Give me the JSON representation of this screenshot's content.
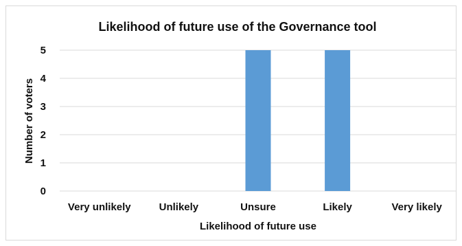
{
  "chart_data": {
    "type": "bar",
    "title": "Likelihood of future use of the Governance tool",
    "xlabel": "Likelihood of future use",
    "ylabel": "Number of voters",
    "categories": [
      "Very unlikely",
      "Unlikely",
      "Unsure",
      "Likely",
      "Very likely"
    ],
    "values": [
      0,
      0,
      5,
      5,
      0
    ],
    "ylim": [
      0,
      5
    ],
    "yticks": [
      "0",
      "1",
      "2",
      "3",
      "4",
      "5"
    ],
    "grid": true,
    "bar_color": "#5b9bd5"
  }
}
